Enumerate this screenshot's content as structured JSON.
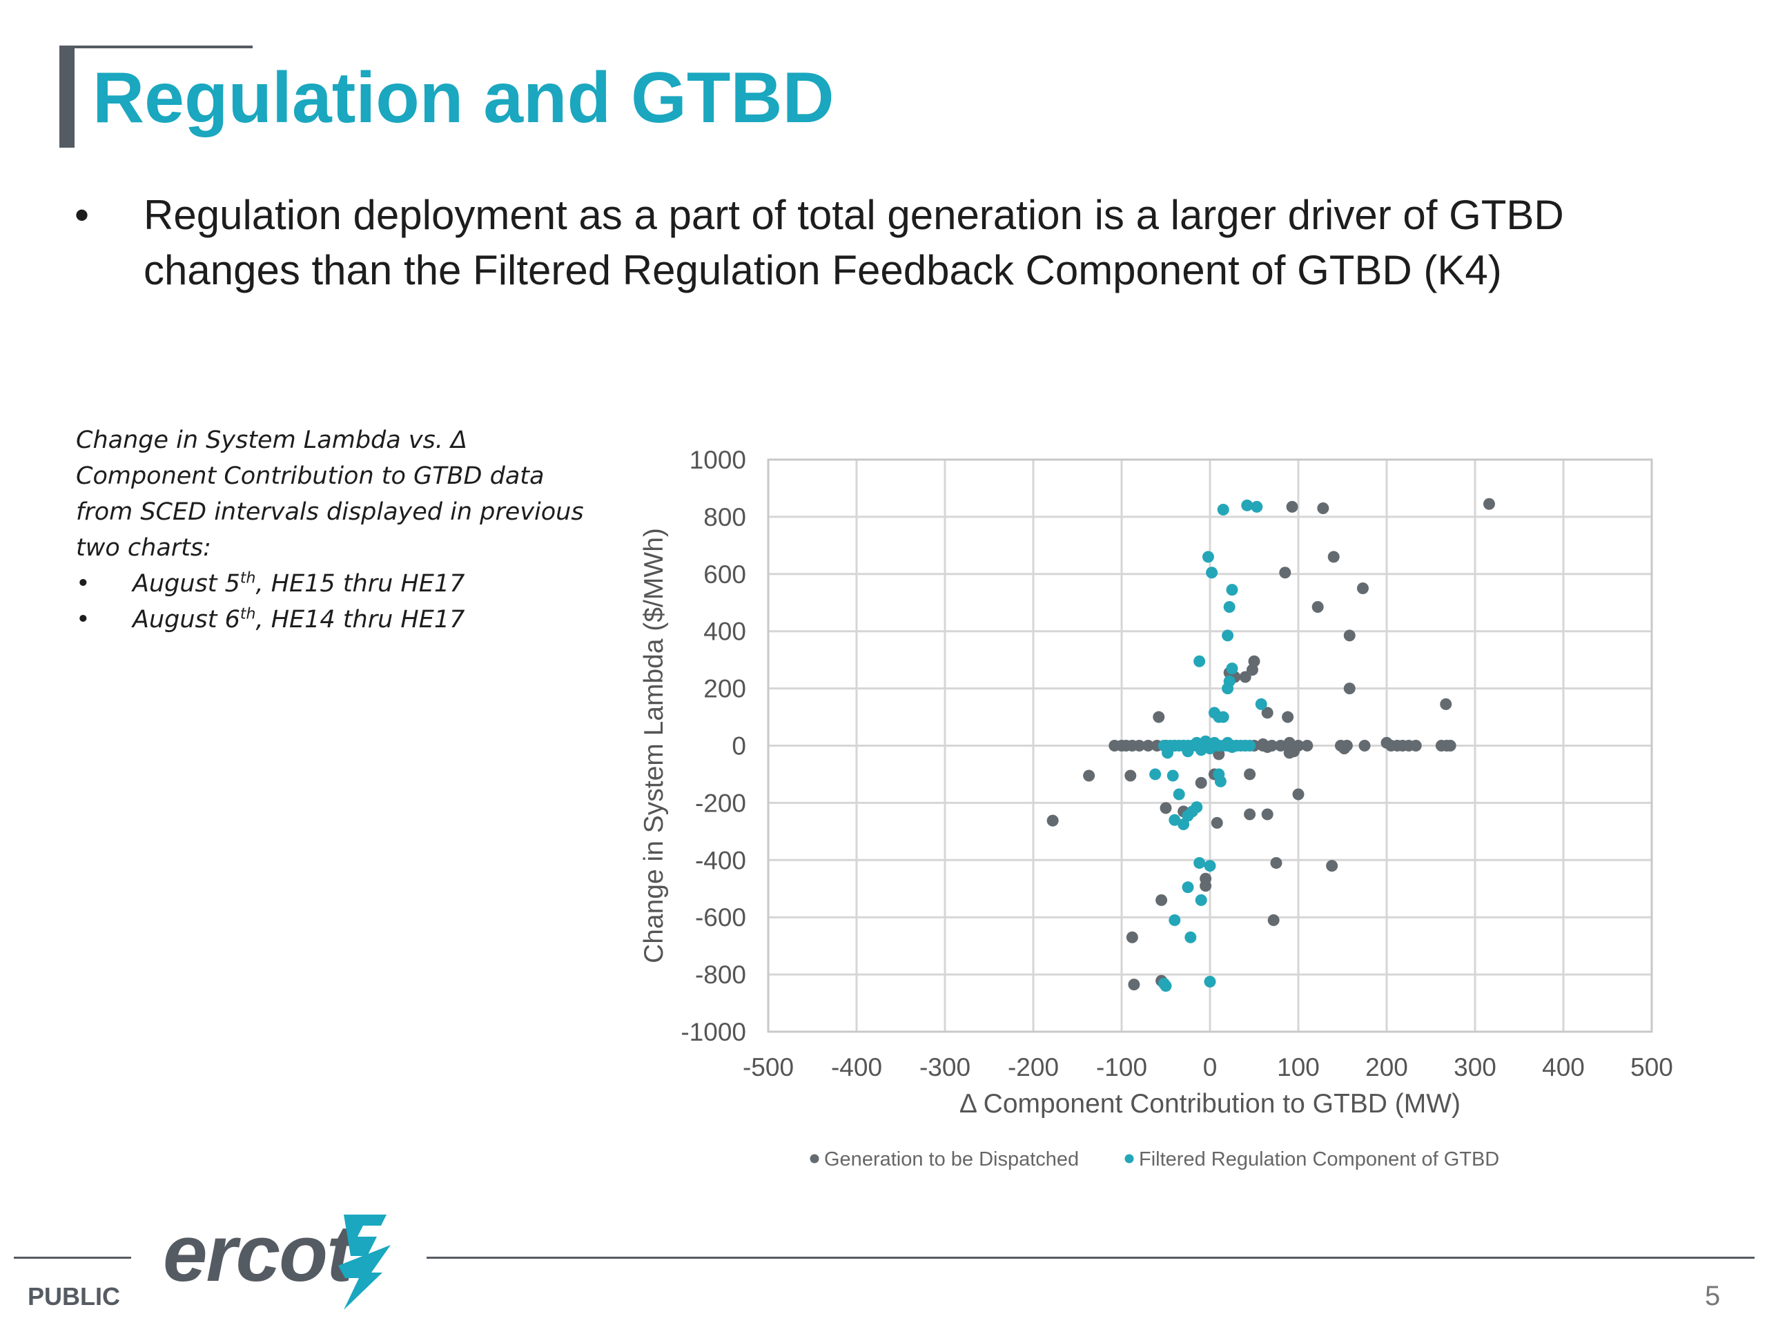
{
  "slide": {
    "title": "Regulation and GTBD",
    "bullet_main": "Regulation deployment as a part of total generation is a larger driver of GTBD changes than the Filtered Regulation Feedback Component of GTBD (K4)",
    "bullet_symbol": "•",
    "side_note": {
      "line": "Change in System Lambda vs. Δ Component Contribution to GTBD data from SCED intervals displayed in previous two charts:",
      "items": [
        {
          "pre": "August 5",
          "sup": "th",
          "post": ", HE15 thru HE17"
        },
        {
          "pre": "August 6",
          "sup": "th",
          "post": ", HE14 thru HE17"
        }
      ]
    },
    "footer": {
      "public": "PUBLIC",
      "logo": "ercot",
      "page_number": "5"
    }
  },
  "colors": {
    "title": "#1aa7bf",
    "series_gen": "#636a70",
    "series_reg": "#23a6b8",
    "grid": "#d6d6d6",
    "text_dark": "#1d1d1d",
    "gray": "#555b62"
  },
  "icons": {
    "logo_mark": "ercot-bolt-icon"
  },
  "chart_data": {
    "type": "scatter",
    "title": "",
    "xlabel": "Δ Component Contribution to GTBD (MW)",
    "ylabel": "Change in System Lambda ($/MWh)",
    "xlim": [
      -500,
      500
    ],
    "ylim": [
      -1000,
      1000
    ],
    "xticks": [
      -500,
      -400,
      -300,
      -200,
      -100,
      0,
      100,
      200,
      300,
      400,
      500
    ],
    "yticks": [
      -1000,
      -800,
      -600,
      -400,
      -200,
      0,
      200,
      400,
      600,
      800,
      1000
    ],
    "grid": true,
    "legend_position": "bottom",
    "series": [
      {
        "name": "Generation to be Dispatched",
        "color": "#636a70",
        "points": [
          [
            -108,
            0
          ],
          [
            -100,
            0
          ],
          [
            -95,
            0
          ],
          [
            -88,
            0
          ],
          [
            -80,
            0
          ],
          [
            -70,
            0
          ],
          [
            -60,
            0
          ],
          [
            -50,
            0
          ],
          [
            -40,
            0
          ],
          [
            -30,
            0
          ],
          [
            -20,
            0
          ],
          [
            -10,
            0
          ],
          [
            0,
            0
          ],
          [
            10,
            0
          ],
          [
            20,
            0
          ],
          [
            30,
            0
          ],
          [
            40,
            0
          ],
          [
            50,
            0
          ],
          [
            60,
            0
          ],
          [
            70,
            0
          ],
          [
            80,
            0
          ],
          [
            90,
            0
          ],
          [
            100,
            0
          ],
          [
            110,
            0
          ],
          [
            90,
            10
          ],
          [
            92,
            -10
          ],
          [
            95,
            -20
          ],
          [
            90,
            -25
          ],
          [
            60,
            5
          ],
          [
            65,
            -5
          ],
          [
            148,
            0
          ],
          [
            152,
            -10
          ],
          [
            155,
            0
          ],
          [
            175,
            0
          ],
          [
            200,
            10
          ],
          [
            205,
            0
          ],
          [
            212,
            0
          ],
          [
            218,
            0
          ],
          [
            225,
            0
          ],
          [
            233,
            0
          ],
          [
            262,
            0
          ],
          [
            268,
            0
          ],
          [
            272,
            0
          ],
          [
            -58,
            100
          ],
          [
            -137,
            -105
          ],
          [
            -90,
            -105
          ],
          [
            -178,
            -262
          ],
          [
            -50,
            -218
          ],
          [
            -30,
            -230
          ],
          [
            -10,
            -130
          ],
          [
            5,
            -100
          ],
          [
            10,
            -30
          ],
          [
            8,
            -270
          ],
          [
            45,
            -100
          ],
          [
            45,
            -240
          ],
          [
            65,
            -240
          ],
          [
            75,
            -410
          ],
          [
            72,
            -610
          ],
          [
            -88,
            -670
          ],
          [
            -86,
            -835
          ],
          [
            -55,
            -822
          ],
          [
            -55,
            -540
          ],
          [
            -5,
            -490
          ],
          [
            -5,
            -465
          ],
          [
            93,
            835
          ],
          [
            128,
            830
          ],
          [
            140,
            660
          ],
          [
            85,
            605
          ],
          [
            122,
            485
          ],
          [
            173,
            550
          ],
          [
            158,
            385
          ],
          [
            158,
            200
          ],
          [
            267,
            145
          ],
          [
            316,
            845
          ],
          [
            100,
            -170
          ],
          [
            138,
            -420
          ],
          [
            88,
            100
          ],
          [
            65,
            115
          ],
          [
            50,
            295
          ],
          [
            48,
            265
          ],
          [
            40,
            240
          ],
          [
            28,
            240
          ],
          [
            22,
            255
          ]
        ]
      },
      {
        "name": "Filtered Regulation Component of GTBD",
        "color": "#23a6b8",
        "points": [
          [
            -52,
            0
          ],
          [
            -45,
            0
          ],
          [
            -40,
            0
          ],
          [
            -35,
            0
          ],
          [
            -30,
            0
          ],
          [
            -25,
            0
          ],
          [
            -20,
            0
          ],
          [
            -15,
            0
          ],
          [
            -10,
            0
          ],
          [
            -5,
            0
          ],
          [
            0,
            0
          ],
          [
            5,
            0
          ],
          [
            10,
            0
          ],
          [
            15,
            0
          ],
          [
            20,
            0
          ],
          [
            25,
            0
          ],
          [
            30,
            0
          ],
          [
            35,
            0
          ],
          [
            40,
            0
          ],
          [
            45,
            0
          ],
          [
            -15,
            10
          ],
          [
            -5,
            15
          ],
          [
            5,
            10
          ],
          [
            0,
            -10
          ],
          [
            -10,
            -15
          ],
          [
            20,
            10
          ],
          [
            25,
            -5
          ],
          [
            -25,
            -20
          ],
          [
            -48,
            -25
          ],
          [
            15,
            825
          ],
          [
            42,
            840
          ],
          [
            53,
            835
          ],
          [
            -2,
            660
          ],
          [
            2,
            605
          ],
          [
            25,
            545
          ],
          [
            22,
            485
          ],
          [
            20,
            385
          ],
          [
            -12,
            295
          ],
          [
            25,
            270
          ],
          [
            22,
            225
          ],
          [
            20,
            200
          ],
          [
            5,
            115
          ],
          [
            10,
            100
          ],
          [
            15,
            100
          ],
          [
            58,
            145
          ],
          [
            -62,
            -100
          ],
          [
            -42,
            -105
          ],
          [
            10,
            -100
          ],
          [
            12,
            -125
          ],
          [
            -35,
            -170
          ],
          [
            -15,
            -215
          ],
          [
            -20,
            -230
          ],
          [
            -25,
            -245
          ],
          [
            -40,
            -260
          ],
          [
            -30,
            -275
          ],
          [
            -12,
            -410
          ],
          [
            0,
            -420
          ],
          [
            -25,
            -495
          ],
          [
            -10,
            -540
          ],
          [
            -40,
            -610
          ],
          [
            -22,
            -670
          ],
          [
            -52,
            -832
          ],
          [
            -50,
            -840
          ],
          [
            0,
            -825
          ]
        ]
      }
    ]
  }
}
